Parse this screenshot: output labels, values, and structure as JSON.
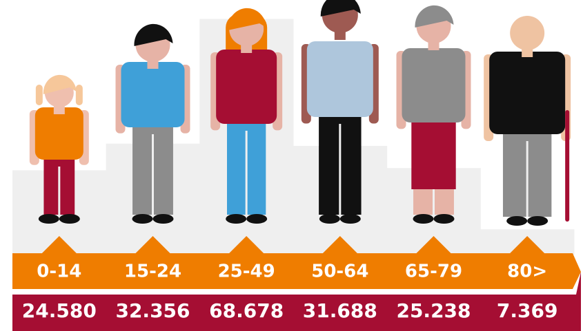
{
  "chart_data": {
    "type": "bar",
    "categories": [
      "0-14",
      "15-24",
      "25-49",
      "50-64",
      "65-79",
      "80>"
    ],
    "values": [
      24580,
      32356,
      68678,
      31688,
      25238,
      7369
    ],
    "value_labels": [
      "24.580",
      "32.356",
      "68.678",
      "31.688",
      "25.238",
      "7.369"
    ],
    "color": "#efefef",
    "ylim": [
      0,
      70000
    ]
  }
}
